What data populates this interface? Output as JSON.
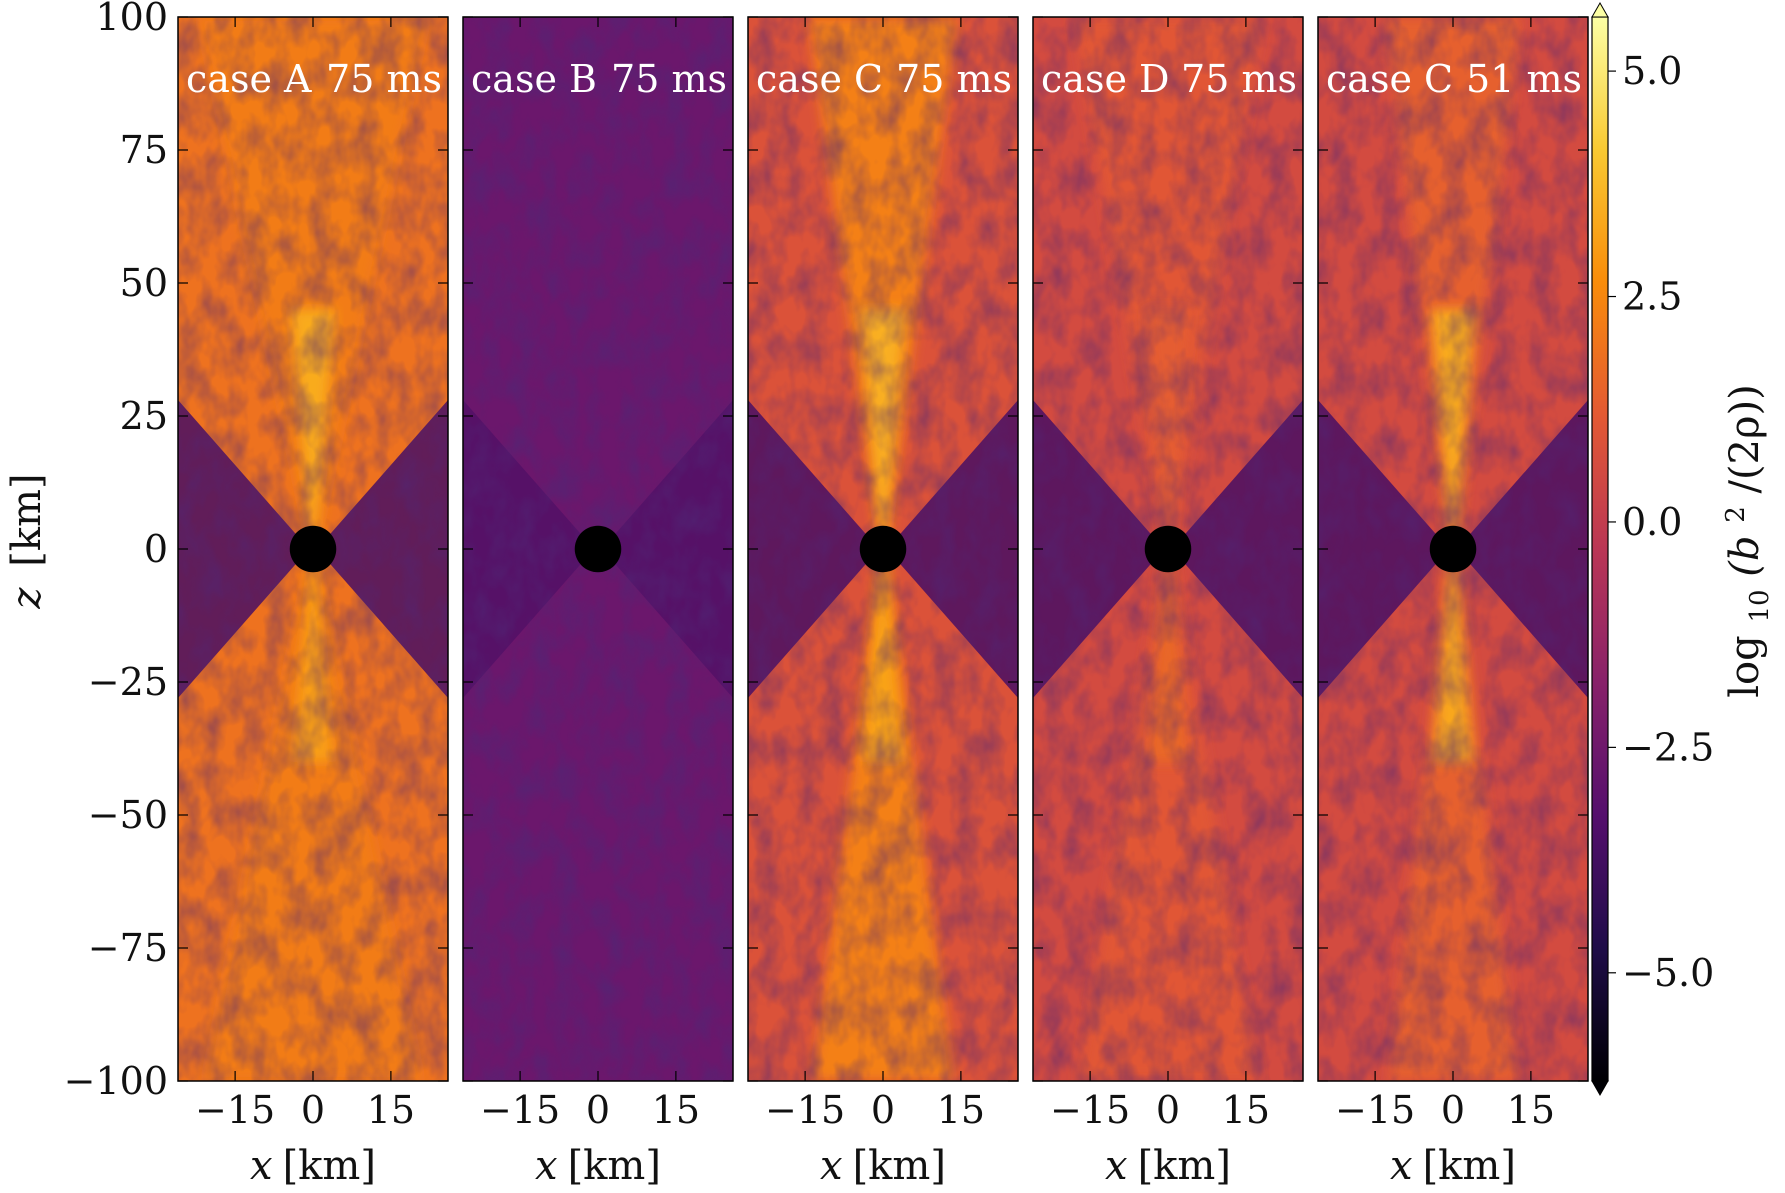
{
  "chart_data": {
    "type": "heatmap",
    "quantity": "log10(b^2/(2rho))",
    "colormap": "inferno",
    "grid": false,
    "shared_y": {
      "label_var": "z",
      "label_unit": "[km]",
      "lim": [
        -100,
        100
      ],
      "ticks": [
        100,
        75,
        50,
        25,
        0,
        -25,
        -50,
        -75,
        -100
      ],
      "tick_labels": [
        "100",
        "75",
        "50",
        "25",
        "0",
        "−25",
        "−50",
        "−75",
        "−100"
      ]
    },
    "x_axis": {
      "label_var": "x",
      "label_unit": "[km]",
      "lim": [
        -26,
        26
      ],
      "ticks": [
        -15,
        0,
        15
      ],
      "tick_labels": [
        "−15",
        "0",
        "15"
      ]
    },
    "colorbar": {
      "label_prefix": "log",
      "label_sub": "10",
      "label_open": "(b",
      "label_sup": "2",
      "label_close": "/(2ρ))",
      "lim": [
        -6.2,
        5.6
      ],
      "ticks": [
        5.0,
        2.5,
        0.0,
        -2.5,
        -5.0
      ],
      "tick_labels": [
        "5.0",
        "2.5",
        "0.0",
        "−2.5",
        "−5.0"
      ],
      "extend": "both"
    },
    "panels": [
      {
        "case": "case A",
        "time": "75 ms",
        "jet_level": 2.2,
        "outer_level": 1.9,
        "jet_top": 3.4,
        "jet_bot": 3.1,
        "open_fraction": 0.85,
        "outer_top_z": 55
      },
      {
        "case": "case B",
        "time": "75 ms",
        "jet_level": -2.4,
        "outer_level": -2.6,
        "jet_top": -2.0,
        "jet_bot": -2.1,
        "open_fraction": 0.0,
        "outer_top_z": 0
      },
      {
        "case": "case C",
        "time": "75 ms",
        "jet_level": 2.3,
        "outer_level": 0.9,
        "jet_top": 3.5,
        "jet_bot": 3.2,
        "open_fraction": 0.55,
        "outer_top_z": 0
      },
      {
        "case": "case D",
        "time": "75 ms",
        "jet_level": 1.1,
        "outer_level": 0.6,
        "jet_top": 1.3,
        "jet_bot": 1.6,
        "open_fraction": 0.7,
        "outer_top_z": 0
      },
      {
        "case": "case C",
        "time": "51 ms",
        "jet_level": 1.4,
        "outer_level": 0.6,
        "jet_top": 3.4,
        "jet_bot": 3.3,
        "open_fraction": 0.5,
        "outer_top_z": 0
      }
    ],
    "black_hole": {
      "x": 0,
      "z": 0,
      "radius_km": 1.4
    },
    "disk_level": -3.6
  }
}
